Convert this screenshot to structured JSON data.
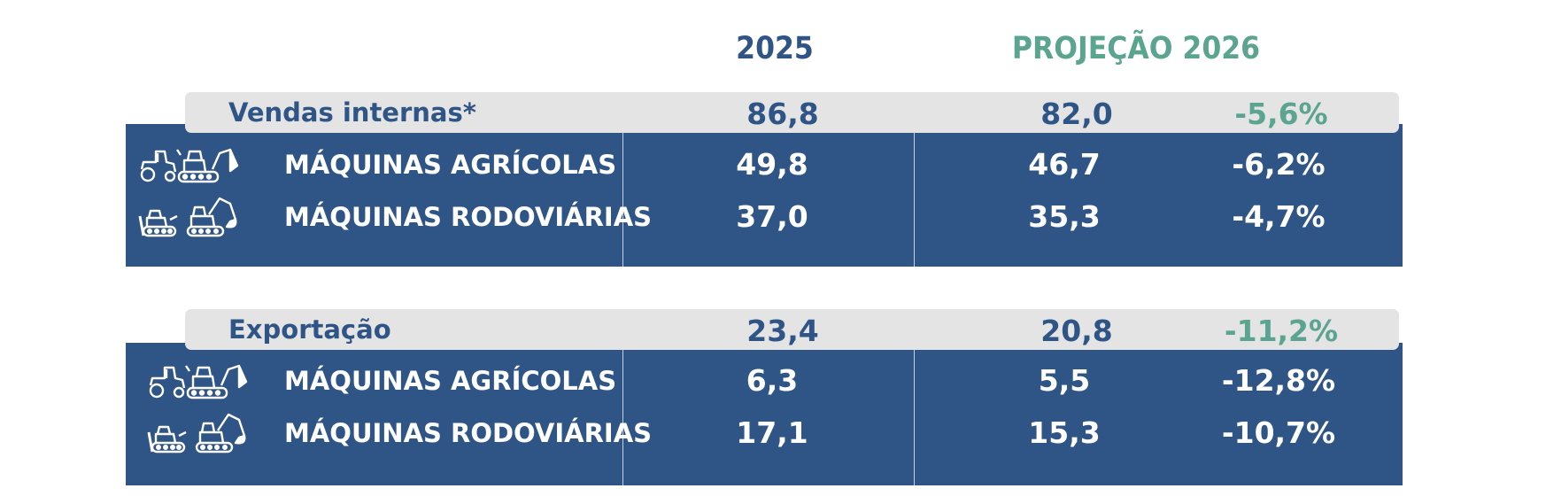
{
  "header": {
    "col_2025": "2025",
    "col_2026": "PROJEÇÃO 2026"
  },
  "colors": {
    "navy": "#2f5486",
    "green": "#5ba48f",
    "bar_grey": "#e4e4e4"
  },
  "chart_data": {
    "type": "table",
    "columns": [
      "2025",
      "PROJEÇÃO 2026",
      ""
    ],
    "sections": [
      {
        "label": "Vendas internas*",
        "v2025": "86,8",
        "v2026": "82,0",
        "change": "-5,6%",
        "rows": [
          {
            "label": "MÁQUINAS AGRÍCOLAS",
            "icons": [
              "tractor-icon",
              "backhoe-loader-icon"
            ],
            "v2025": "49,8",
            "v2026": "46,7",
            "change": "-6,2%"
          },
          {
            "label": "MÁQUINAS RODOVIÁRIAS",
            "icons": [
              "bulldozer-icon",
              "excavator-icon"
            ],
            "v2025": "37,0",
            "v2026": "35,3",
            "change": "-4,7%"
          }
        ]
      },
      {
        "label": "Exportação",
        "v2025": "23,4",
        "v2026": "20,8",
        "change": "-11,2%",
        "rows": [
          {
            "label": "MÁQUINAS AGRÍCOLAS",
            "icons": [
              "tractor-icon",
              "backhoe-loader-icon"
            ],
            "v2025": "6,3",
            "v2026": "5,5",
            "change": "-12,8%"
          },
          {
            "label": "MÁQUINAS RODOVIÁRIAS",
            "icons": [
              "bulldozer-icon",
              "excavator-icon"
            ],
            "v2025": "17,1",
            "v2026": "15,3",
            "change": "-10,7%"
          }
        ]
      }
    ]
  }
}
